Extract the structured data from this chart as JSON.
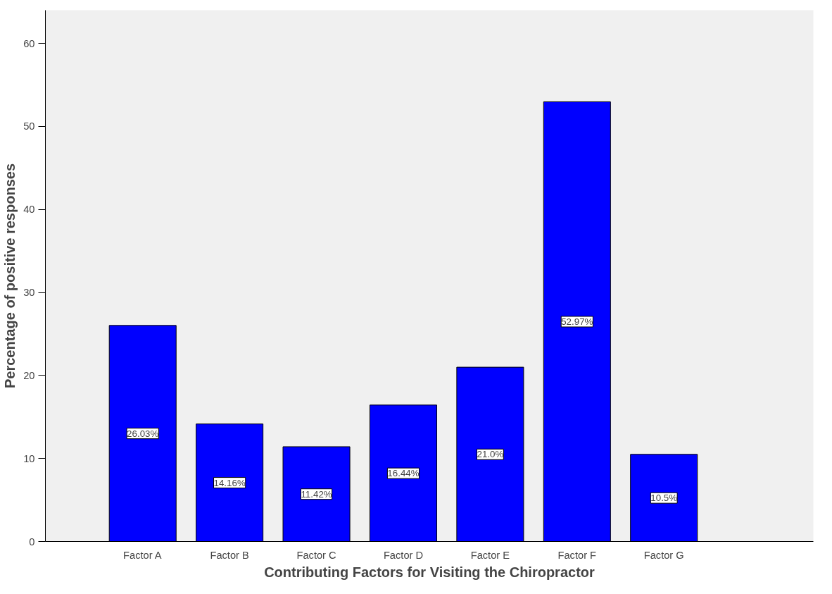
{
  "chart_data": {
    "type": "bar",
    "xlabel": "Contributing Factors for Visiting the Chiropractor",
    "ylabel": "Percentage of positive responses",
    "categories": [
      "Factor A",
      "Factor B",
      "Factor C",
      "Factor D",
      "Factor E",
      "Factor F",
      "Factor G"
    ],
    "values": [
      26.03,
      14.16,
      11.42,
      16.44,
      21.0,
      52.97,
      10.5
    ],
    "value_labels": [
      "26.03%",
      "14.16%",
      "11.42%",
      "16.44%",
      "21.0%",
      "52.97%",
      "10.5%"
    ],
    "color": "#0000ff",
    "ylim": [
      0,
      64
    ],
    "yticks": [
      0,
      10,
      20,
      30,
      40,
      50,
      60
    ],
    "grid": false
  }
}
